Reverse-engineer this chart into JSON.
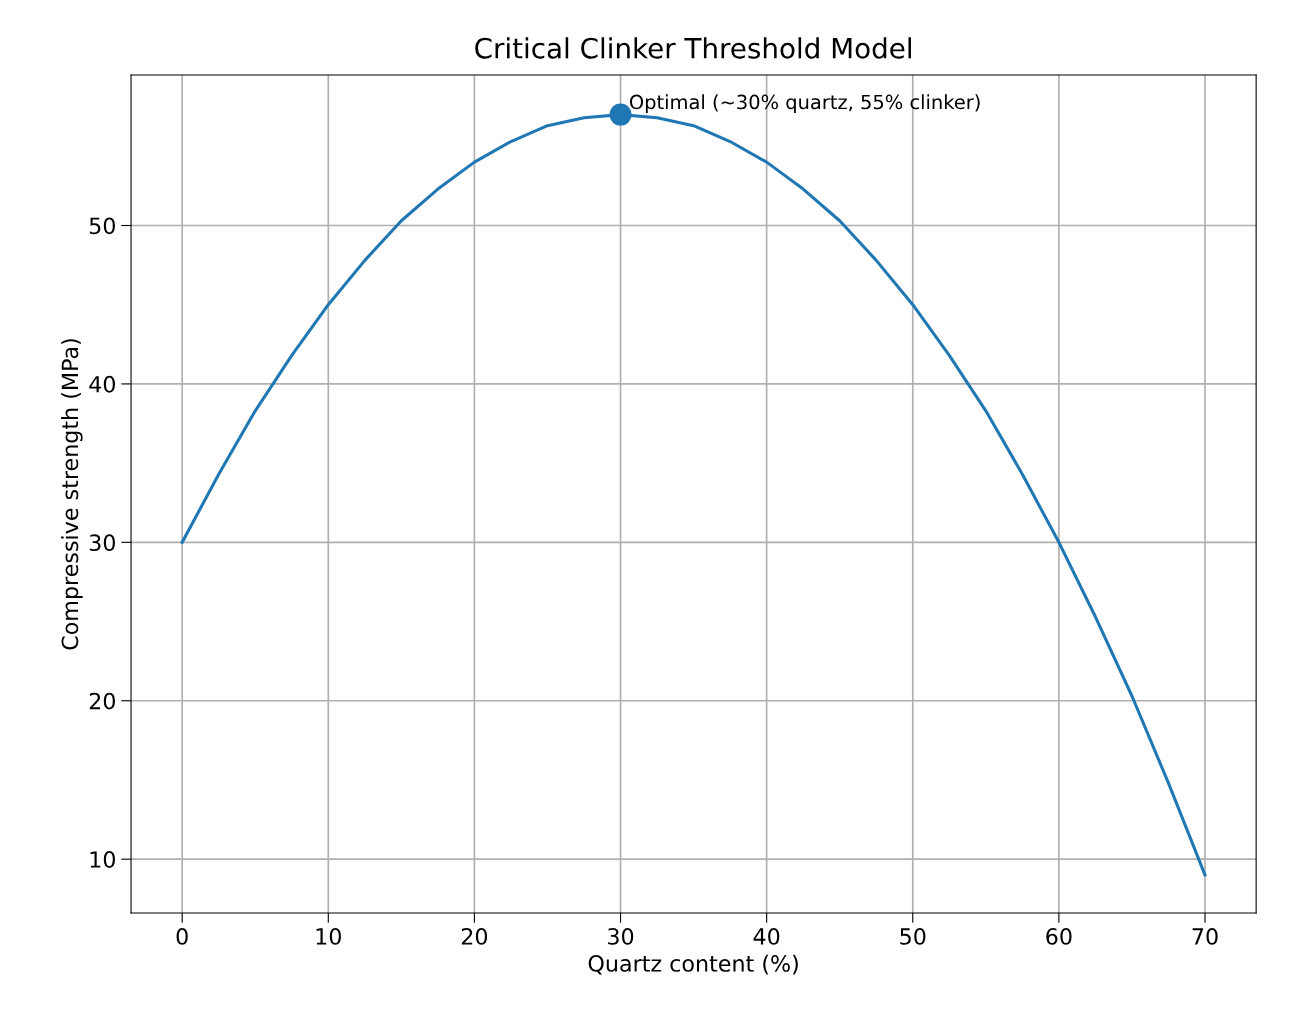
{
  "chart_data": {
    "type": "line",
    "title": "Critical Clinker Threshold Model",
    "xlabel": "Quartz content (%)",
    "ylabel": "Compressive strength (MPa)",
    "series": [
      {
        "color": "#1f77b4",
        "marker": "none",
        "x": [
          0,
          2.5,
          5,
          7.5,
          10,
          12.5,
          15,
          17.5,
          20,
          22.5,
          25,
          27.5,
          30,
          32.5,
          35,
          37.5,
          40,
          42.5,
          45,
          47.5,
          50,
          52.5,
          55,
          57.5,
          60,
          62.5,
          65,
          67.5,
          70
        ],
        "values": [
          30,
          34.3,
          38.3,
          41.8,
          45,
          47.8,
          50.3,
          52.3,
          54,
          55.3,
          56.3,
          56.8,
          57,
          56.8,
          56.3,
          55.3,
          54,
          52.3,
          50.3,
          47.8,
          45,
          41.8,
          38.3,
          34.3,
          30,
          25.3,
          20.3,
          14.8,
          9
        ]
      },
      {
        "type": "scatter",
        "marker": "circle",
        "color": "#1f77b4",
        "x": [
          30
        ],
        "values": [
          57
        ]
      }
    ],
    "annotations": [
      {
        "text": "Optimal (~30% quartz, 55% clinker)",
        "x": 30,
        "y": 57
      }
    ],
    "xlim": [
      -3.5,
      73.5
    ],
    "xticks": [
      0,
      10,
      20,
      30,
      40,
      50,
      60,
      70
    ],
    "ylim": [
      6.6,
      59.5
    ],
    "yticks": [
      10,
      20,
      30,
      40,
      50
    ],
    "grid": true,
    "line_style": "solid"
  }
}
